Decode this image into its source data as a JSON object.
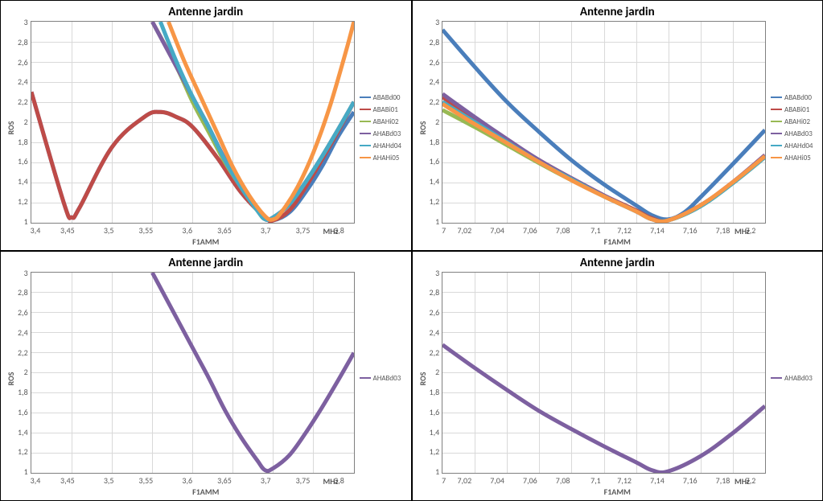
{
  "charts": [
    {
      "title": "Antenne jardin",
      "ylabel": "ROS",
      "xlabel_left": "F1AMM",
      "xlabel_right": "MHz",
      "xlim": [
        3.4,
        3.8
      ],
      "ylim": [
        1,
        3
      ],
      "xticks": [
        "3,4",
        "3,45",
        "3,5",
        "3,55",
        "3,6",
        "3,65",
        "3,7",
        "3,75",
        "3,8"
      ],
      "yticks": [
        "3",
        "2,8",
        "2,6",
        "2,4",
        "2,2",
        "2",
        "1,8",
        "1,6",
        "1,4",
        "1,2",
        "1"
      ],
      "grid_color": "#d9d9d9",
      "line_width": 2,
      "series": [
        {
          "label": "ABABd00",
          "color": "#4a7ebb",
          "points": [
            [
              3.4,
              2.3
            ],
            [
              3.44,
              1.2
            ],
            [
              3.45,
              1.05
            ],
            [
              3.46,
              1.15
            ],
            [
              3.5,
              1.75
            ],
            [
              3.54,
              2.05
            ],
            [
              3.56,
              2.1
            ],
            [
              3.58,
              2.05
            ],
            [
              3.6,
              1.95
            ],
            [
              3.63,
              1.65
            ],
            [
              3.66,
              1.3
            ],
            [
              3.69,
              1.05
            ],
            [
              3.7,
              1.02
            ],
            [
              3.72,
              1.1
            ],
            [
              3.74,
              1.3
            ],
            [
              3.76,
              1.55
            ],
            [
              3.78,
              1.85
            ],
            [
              3.8,
              2.1
            ]
          ]
        },
        {
          "label": "ABABi01",
          "color": "#be4b48",
          "points": [
            [
              3.4,
              2.3
            ],
            [
              3.44,
              1.2
            ],
            [
              3.45,
              1.05
            ],
            [
              3.46,
              1.15
            ],
            [
              3.5,
              1.75
            ],
            [
              3.54,
              2.05
            ],
            [
              3.56,
              2.1
            ],
            [
              3.58,
              2.05
            ],
            [
              3.6,
              1.95
            ],
            [
              3.63,
              1.65
            ],
            [
              3.66,
              1.3
            ],
            [
              3.69,
              1.05
            ],
            [
              3.7,
              1.02
            ],
            [
              3.72,
              1.12
            ],
            [
              3.74,
              1.35
            ],
            [
              3.76,
              1.62
            ],
            [
              3.78,
              1.9
            ],
            [
              3.8,
              2.2
            ]
          ]
        },
        {
          "label": "ABAHi02",
          "color": "#98b954",
          "points": [
            [
              3.55,
              3.0
            ],
            [
              3.58,
              2.55
            ],
            [
              3.6,
              2.2
            ],
            [
              3.62,
              1.9
            ],
            [
              3.64,
              1.6
            ],
            [
              3.66,
              1.35
            ],
            [
              3.68,
              1.12
            ],
            [
              3.69,
              1.03
            ],
            [
              3.7,
              1.05
            ],
            [
              3.72,
              1.18
            ],
            [
              3.74,
              1.4
            ],
            [
              3.76,
              1.65
            ],
            [
              3.78,
              1.92
            ],
            [
              3.8,
              2.2
            ]
          ]
        },
        {
          "label": "AHABd03",
          "color": "#7d60a0",
          "points": [
            [
              3.55,
              3.0
            ],
            [
              3.57,
              2.7
            ],
            [
              3.6,
              2.25
            ],
            [
              3.62,
              1.95
            ],
            [
              3.64,
              1.63
            ],
            [
              3.66,
              1.36
            ],
            [
              3.68,
              1.13
            ],
            [
              3.69,
              1.03
            ],
            [
              3.7,
              1.05
            ],
            [
              3.72,
              1.18
            ],
            [
              3.74,
              1.4
            ],
            [
              3.76,
              1.65
            ],
            [
              3.78,
              1.92
            ],
            [
              3.8,
              2.2
            ]
          ]
        },
        {
          "label": "AHAHd04",
          "color": "#46aac5",
          "points": [
            [
              3.56,
              3.0
            ],
            [
              3.58,
              2.6
            ],
            [
              3.6,
              2.25
            ],
            [
              3.62,
              1.95
            ],
            [
              3.64,
              1.62
            ],
            [
              3.66,
              1.35
            ],
            [
              3.68,
              1.12
            ],
            [
              3.69,
              1.03
            ],
            [
              3.7,
              1.05
            ],
            [
              3.72,
              1.18
            ],
            [
              3.74,
              1.4
            ],
            [
              3.76,
              1.65
            ],
            [
              3.78,
              1.92
            ],
            [
              3.8,
              2.2
            ]
          ]
        },
        {
          "label": "AHAHi05",
          "color": "#f79646",
          "points": [
            [
              3.57,
              3.0
            ],
            [
              3.59,
              2.6
            ],
            [
              3.61,
              2.25
            ],
            [
              3.63,
              1.9
            ],
            [
              3.65,
              1.55
            ],
            [
              3.67,
              1.27
            ],
            [
              3.69,
              1.06
            ],
            [
              3.7,
              1.03
            ],
            [
              3.71,
              1.1
            ],
            [
              3.73,
              1.35
            ],
            [
              3.75,
              1.7
            ],
            [
              3.77,
              2.15
            ],
            [
              3.79,
              2.7
            ],
            [
              3.8,
              3.0
            ]
          ]
        }
      ]
    },
    {
      "title": "Antenne jardin",
      "ylabel": "ROS",
      "xlabel_left": "F1AMM",
      "xlabel_right": "MHz",
      "xlim": [
        7.0,
        7.2
      ],
      "ylim": [
        1,
        3
      ],
      "xticks": [
        "7",
        "7,02",
        "7,04",
        "7,06",
        "7,08",
        "7,1",
        "7,12",
        "7,14",
        "7,16",
        "7,18",
        "7,2"
      ],
      "yticks": [
        "3",
        "2,8",
        "2,6",
        "2,4",
        "2,2",
        "2",
        "1,8",
        "1,6",
        "1,4",
        "1,2",
        "1"
      ],
      "grid_color": "#d9d9d9",
      "line_width": 2,
      "series": [
        {
          "label": "ABABd00",
          "color": "#4a7ebb",
          "points": [
            [
              7.0,
              2.92
            ],
            [
              7.02,
              2.55
            ],
            [
              7.04,
              2.2
            ],
            [
              7.06,
              1.9
            ],
            [
              7.08,
              1.62
            ],
            [
              7.1,
              1.38
            ],
            [
              7.12,
              1.17
            ],
            [
              7.13,
              1.07
            ],
            [
              7.14,
              1.03
            ],
            [
              7.15,
              1.1
            ],
            [
              7.16,
              1.25
            ],
            [
              7.18,
              1.58
            ],
            [
              7.2,
              1.92
            ]
          ]
        },
        {
          "label": "ABABi01",
          "color": "#be4b48",
          "points": [
            [
              7.0,
              2.25
            ],
            [
              7.02,
              2.03
            ],
            [
              7.04,
              1.82
            ],
            [
              7.06,
              1.62
            ],
            [
              7.08,
              1.44
            ],
            [
              7.1,
              1.27
            ],
            [
              7.12,
              1.12
            ],
            [
              7.13,
              1.04
            ],
            [
              7.14,
              1.02
            ],
            [
              7.16,
              1.17
            ],
            [
              7.18,
              1.4
            ],
            [
              7.2,
              1.67
            ]
          ]
        },
        {
          "label": "ABAHi02",
          "color": "#98b954",
          "points": [
            [
              7.0,
              2.12
            ],
            [
              7.02,
              1.95
            ],
            [
              7.04,
              1.77
            ],
            [
              7.06,
              1.59
            ],
            [
              7.08,
              1.42
            ],
            [
              7.1,
              1.26
            ],
            [
              7.12,
              1.11
            ],
            [
              7.13,
              1.03
            ],
            [
              7.14,
              1.02
            ],
            [
              7.16,
              1.16
            ],
            [
              7.18,
              1.39
            ],
            [
              7.2,
              1.65
            ]
          ]
        },
        {
          "label": "AHABd03",
          "color": "#7d60a0",
          "points": [
            [
              7.0,
              2.28
            ],
            [
              7.02,
              2.05
            ],
            [
              7.04,
              1.83
            ],
            [
              7.06,
              1.62
            ],
            [
              7.08,
              1.44
            ],
            [
              7.1,
              1.27
            ],
            [
              7.12,
              1.11
            ],
            [
              7.13,
              1.03
            ],
            [
              7.14,
              1.02
            ],
            [
              7.16,
              1.17
            ],
            [
              7.18,
              1.4
            ],
            [
              7.2,
              1.67
            ]
          ]
        },
        {
          "label": "AHAHd04",
          "color": "#46aac5",
          "points": [
            [
              7.0,
              2.2
            ],
            [
              7.02,
              2.0
            ],
            [
              7.04,
              1.8
            ],
            [
              7.06,
              1.6
            ],
            [
              7.08,
              1.43
            ],
            [
              7.1,
              1.26
            ],
            [
              7.12,
              1.11
            ],
            [
              7.13,
              1.03
            ],
            [
              7.14,
              1.02
            ],
            [
              7.16,
              1.16
            ],
            [
              7.18,
              1.39
            ],
            [
              7.2,
              1.65
            ]
          ]
        },
        {
          "label": "AHAHi05",
          "color": "#f79646",
          "points": [
            [
              7.0,
              2.18
            ],
            [
              7.02,
              1.98
            ],
            [
              7.04,
              1.79
            ],
            [
              7.06,
              1.6
            ],
            [
              7.08,
              1.42
            ],
            [
              7.1,
              1.26
            ],
            [
              7.12,
              1.11
            ],
            [
              7.13,
              1.03
            ],
            [
              7.14,
              1.02
            ],
            [
              7.16,
              1.17
            ],
            [
              7.18,
              1.4
            ],
            [
              7.2,
              1.66
            ]
          ]
        }
      ]
    },
    {
      "title": "Antenne jardin",
      "ylabel": "ROS",
      "xlabel_left": "F1AMM",
      "xlabel_right": "MHz",
      "xlim": [
        3.4,
        3.8
      ],
      "ylim": [
        1,
        3
      ],
      "xticks": [
        "3,4",
        "3,45",
        "3,5",
        "3,55",
        "3,6",
        "3,65",
        "3,7",
        "3,75",
        "3,8"
      ],
      "yticks": [
        "3",
        "2,8",
        "2,6",
        "2,4",
        "2,2",
        "2",
        "1,8",
        "1,6",
        "1,4",
        "1,2",
        "1"
      ],
      "grid_color": "#d9d9d9",
      "line_width": 2,
      "series": [
        {
          "label": "AHABd03",
          "color": "#7d60a0",
          "points": [
            [
              3.55,
              3.0
            ],
            [
              3.57,
              2.7
            ],
            [
              3.6,
              2.25
            ],
            [
              3.62,
              1.95
            ],
            [
              3.64,
              1.63
            ],
            [
              3.66,
              1.36
            ],
            [
              3.68,
              1.13
            ],
            [
              3.69,
              1.03
            ],
            [
              3.7,
              1.05
            ],
            [
              3.72,
              1.18
            ],
            [
              3.74,
              1.4
            ],
            [
              3.76,
              1.65
            ],
            [
              3.78,
              1.92
            ],
            [
              3.8,
              2.2
            ]
          ]
        }
      ]
    },
    {
      "title": "Antenne jardin",
      "ylabel": "ROS",
      "xlabel_left": "F1AMM",
      "xlabel_right": "MHz",
      "xlim": [
        7.0,
        7.2
      ],
      "ylim": [
        1,
        3
      ],
      "xticks": [
        "7",
        "7,02",
        "7,04",
        "7,06",
        "7,08",
        "7,1",
        "7,12",
        "7,14",
        "7,16",
        "7,18",
        "7,2"
      ],
      "yticks": [
        "3",
        "2,8",
        "2,6",
        "2,4",
        "2,2",
        "2",
        "1,8",
        "1,6",
        "1,4",
        "1,2",
        "1"
      ],
      "grid_color": "#d9d9d9",
      "line_width": 2,
      "series": [
        {
          "label": "AHABd03",
          "color": "#7d60a0",
          "points": [
            [
              7.0,
              2.28
            ],
            [
              7.02,
              2.05
            ],
            [
              7.04,
              1.83
            ],
            [
              7.06,
              1.62
            ],
            [
              7.08,
              1.44
            ],
            [
              7.1,
              1.27
            ],
            [
              7.12,
              1.11
            ],
            [
              7.13,
              1.03
            ],
            [
              7.14,
              1.02
            ],
            [
              7.16,
              1.17
            ],
            [
              7.18,
              1.4
            ],
            [
              7.2,
              1.67
            ]
          ]
        }
      ]
    }
  ]
}
